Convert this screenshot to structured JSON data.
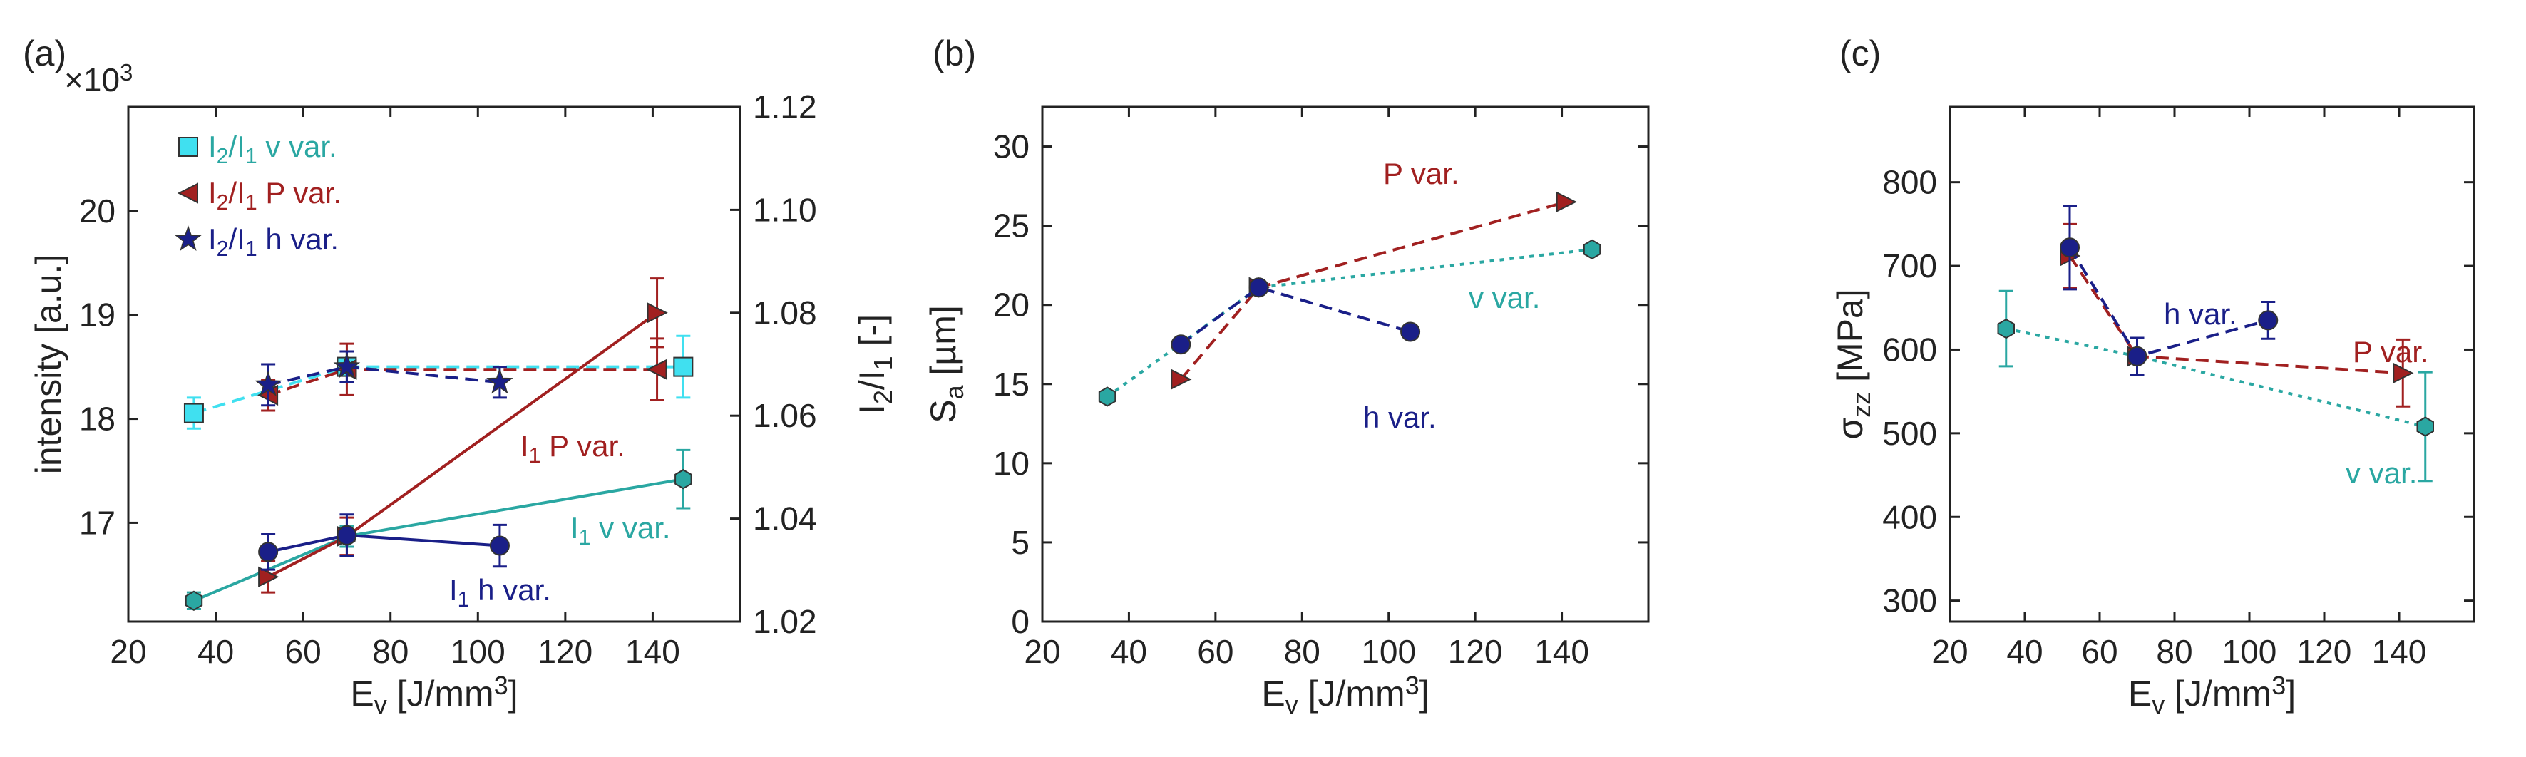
{
  "colors": {
    "teal": "#2aa7a2",
    "red": "#a12020",
    "blue": "#1a1f88",
    "cyan": "#40e0f0",
    "axis": "#222222"
  },
  "chart_data": [
    {
      "panel": "(a)",
      "type": "line",
      "xlabel": {
        "main": "E",
        "sub": "v",
        "unit": " [J/mm",
        "sup": "3",
        "close": "]"
      },
      "ylabel": "intensity [a.u.]",
      "y2label": {
        "a": "I",
        "a_sub": "2",
        "slash": "/I",
        "b_sub": "1",
        "unit": " [-]"
      },
      "exponent": {
        "times": "×10",
        "sup": "3"
      },
      "xlim": [
        20,
        160
      ],
      "ylim": [
        16.05,
        21.0
      ],
      "y2lim": [
        1.02,
        1.12
      ],
      "xticks": [
        "20",
        "40",
        "60",
        "80",
        "100",
        "120",
        "140"
      ],
      "yticks": [
        "17",
        "18",
        "19",
        "20"
      ],
      "y2ticks": [
        "1.02",
        "1.04",
        "1.06",
        "1.08",
        "1.10",
        "1.12"
      ],
      "yticks_values": [
        17,
        18,
        19,
        20
      ],
      "y2ticks_values": [
        1.02,
        1.04,
        1.06,
        1.08,
        1.1,
        1.12
      ],
      "xticks_values": [
        20,
        40,
        60,
        80,
        100,
        120,
        140
      ],
      "legend": [
        {
          "pre": "I",
          "s1": "2",
          "mid": "/I",
          "s2": "1",
          "post": " v var.",
          "marker": "square",
          "color": "teal"
        },
        {
          "pre": "I",
          "s1": "2",
          "mid": "/I",
          "s2": "1",
          "post": " P var.",
          "marker": "triangle-left",
          "color": "red"
        },
        {
          "pre": "I",
          "s1": "2",
          "mid": "/I",
          "s2": "1",
          "post": " h var.",
          "marker": "star",
          "color": "blue"
        }
      ],
      "series": [
        {
          "name": "I1 v var.",
          "axis": "left",
          "style": "solid",
          "color": "teal",
          "marker": "hexagon",
          "x": [
            35,
            70,
            147
          ],
          "y": [
            16.25,
            16.87,
            17.42
          ],
          "err": [
            0.08,
            0.1,
            0.28
          ]
        },
        {
          "name": "I1 P var.",
          "axis": "left",
          "style": "solid",
          "color": "red",
          "marker": "triangle-right",
          "x": [
            52,
            70,
            141
          ],
          "y": [
            16.48,
            16.87,
            19.02
          ],
          "err": [
            0.15,
            0.18,
            0.33
          ]
        },
        {
          "name": "I1 h var.",
          "axis": "left",
          "style": "solid",
          "color": "blue",
          "marker": "circle",
          "x": [
            52,
            70,
            105
          ],
          "y": [
            16.72,
            16.88,
            16.78
          ],
          "err": [
            0.17,
            0.2,
            0.2
          ]
        },
        {
          "name": "I2/I1 v var.",
          "axis": "right",
          "style": "dashed",
          "color": "cyan",
          "marker": "square",
          "x": [
            35,
            70,
            147
          ],
          "y": [
            1.0605,
            1.0695,
            1.0695
          ],
          "err": [
            0.003,
            0.003,
            0.006
          ]
        },
        {
          "name": "I2/I1 P var.",
          "axis": "right",
          "style": "dashed",
          "color": "red",
          "marker": "triangle-left",
          "x": [
            52,
            70,
            141
          ],
          "y": [
            1.064,
            1.069,
            1.069
          ],
          "err": [
            0.003,
            0.005,
            0.006
          ]
        },
        {
          "name": "I2/I1 h var.",
          "axis": "right",
          "style": "dashed",
          "color": "blue",
          "marker": "star",
          "x": [
            52,
            70,
            105
          ],
          "y": [
            1.066,
            1.0695,
            1.0665
          ],
          "err": [
            0.004,
            0.003,
            0.003
          ]
        }
      ],
      "annotations": [
        {
          "pre": "I",
          "sub": "1",
          "post": " P var.",
          "color": "red"
        },
        {
          "pre": "I",
          "sub": "1",
          "post": " v var.",
          "color": "teal"
        },
        {
          "pre": "I",
          "sub": "1",
          "post": " h var.",
          "color": "blue"
        }
      ]
    },
    {
      "panel": "(b)",
      "type": "line",
      "xlabel": {
        "main": "E",
        "sub": "v",
        "unit": " [J/mm",
        "sup": "3",
        "close": "]"
      },
      "ylabel": {
        "main": "S",
        "sub": "a",
        "unit": " [µm]"
      },
      "xlim": [
        20,
        160
      ],
      "ylim": [
        0,
        32.5
      ],
      "xticks": [
        "20",
        "40",
        "60",
        "80",
        "100",
        "120",
        "140"
      ],
      "yticks": [
        "0",
        "5",
        "10",
        "15",
        "20",
        "25",
        "30"
      ],
      "yticks_values": [
        0,
        5,
        10,
        15,
        20,
        25,
        30
      ],
      "xticks_values": [
        20,
        40,
        60,
        80,
        100,
        120,
        140
      ],
      "series": [
        {
          "name": "v var.",
          "style": "dotted",
          "color": "teal",
          "marker": "hexagon",
          "x": [
            35,
            70,
            147
          ],
          "y": [
            14.2,
            21.1,
            23.5
          ]
        },
        {
          "name": "P var.",
          "style": "dashed",
          "color": "red",
          "marker": "triangle-right",
          "x": [
            52,
            70,
            141
          ],
          "y": [
            15.3,
            21.1,
            26.5
          ]
        },
        {
          "name": "h var.",
          "style": "dashed",
          "color": "blue",
          "marker": "circle",
          "x": [
            52,
            70,
            105
          ],
          "y": [
            17.5,
            21.1,
            18.3
          ]
        }
      ],
      "annotations": [
        {
          "text": "P var.",
          "color": "red"
        },
        {
          "text": "v var.",
          "color": "teal"
        },
        {
          "text": "h var.",
          "color": "blue"
        }
      ]
    },
    {
      "panel": "(c)",
      "type": "line",
      "xlabel": {
        "main": "E",
        "sub": "v",
        "unit": " [J/mm",
        "sup": "3",
        "close": "]"
      },
      "ylabel": {
        "main": "σ",
        "sub": "zz",
        "unit": " [MPa]"
      },
      "xlim": [
        20,
        160
      ],
      "ylim": [
        275,
        890
      ],
      "xticks": [
        "20",
        "40",
        "60",
        "80",
        "100",
        "120",
        "140"
      ],
      "yticks": [
        "300",
        "400",
        "500",
        "600",
        "700",
        "800"
      ],
      "yticks_values": [
        300,
        400,
        500,
        600,
        700,
        800
      ],
      "xticks_values": [
        20,
        40,
        60,
        80,
        100,
        120,
        140
      ],
      "series": [
        {
          "name": "v var.",
          "style": "dotted",
          "color": "teal",
          "marker": "hexagon",
          "x": [
            35,
            70,
            147
          ],
          "y": [
            625,
            592,
            508
          ],
          "err": [
            45,
            22,
            65
          ]
        },
        {
          "name": "P var.",
          "style": "dashed",
          "color": "red",
          "marker": "triangle-right",
          "x": [
            52,
            70,
            141
          ],
          "y": [
            712,
            592,
            572
          ],
          "err": [
            38,
            22,
            40
          ]
        },
        {
          "name": "h var.",
          "style": "dashed",
          "color": "blue",
          "marker": "circle",
          "x": [
            52,
            70,
            105
          ],
          "y": [
            722,
            592,
            635
          ],
          "err": [
            50,
            22,
            22
          ]
        }
      ],
      "annotations": [
        {
          "text": "h var.",
          "color": "blue"
        },
        {
          "text": "P var.",
          "color": "red"
        },
        {
          "text": "v var.",
          "color": "teal"
        }
      ]
    }
  ]
}
